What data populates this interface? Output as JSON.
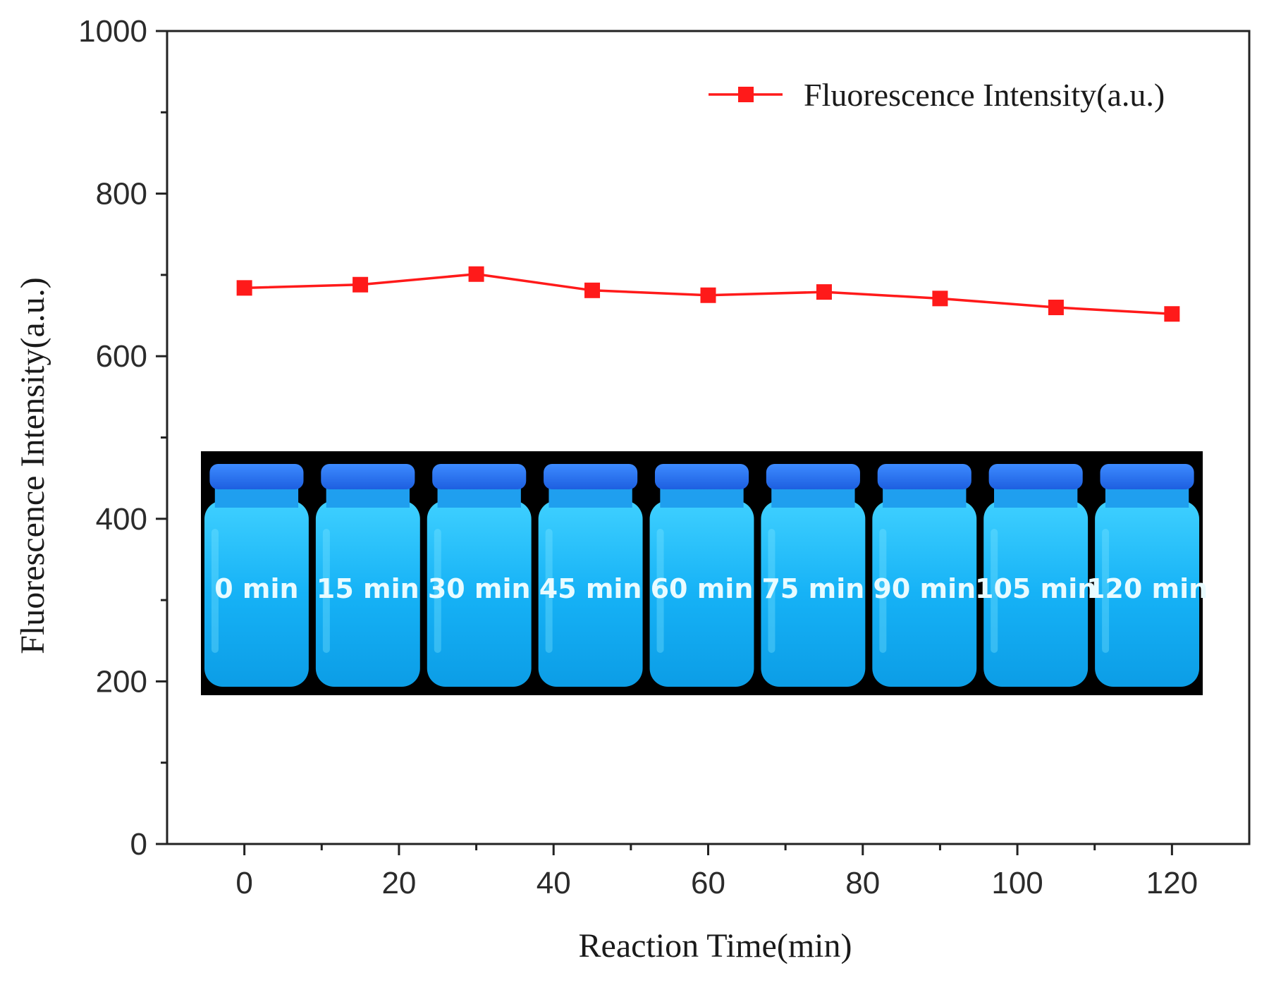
{
  "chart_data": {
    "type": "line",
    "xlabel": "Reaction Time(min)",
    "ylabel": "Fluorescence Intensity(a.u.)",
    "xlim": [
      -10,
      130
    ],
    "ylim": [
      0,
      1000
    ],
    "x_ticks": [
      0,
      20,
      40,
      60,
      80,
      100,
      120
    ],
    "y_ticks": [
      0,
      200,
      400,
      600,
      800,
      1000
    ],
    "x_minor_step": 10,
    "y_minor_step": 100,
    "grid": false,
    "legend_position": "top-right",
    "series": [
      {
        "name": "Fluorescence Intensity(a.u.)",
        "color": "#ff1a1a",
        "marker": "square",
        "x": [
          0,
          15,
          30,
          45,
          60,
          75,
          90,
          105,
          120
        ],
        "y": [
          684,
          688,
          701,
          681,
          675,
          679,
          671,
          660,
          652
        ]
      }
    ]
  },
  "inset_photo": {
    "description_labels": [
      "0 min",
      "15 min",
      "30 min",
      "45 min",
      "60 min",
      "75 min",
      "90 min",
      "105 min",
      "120 min"
    ],
    "glow_color": "#1fb8ff",
    "background_color": "#000000"
  }
}
